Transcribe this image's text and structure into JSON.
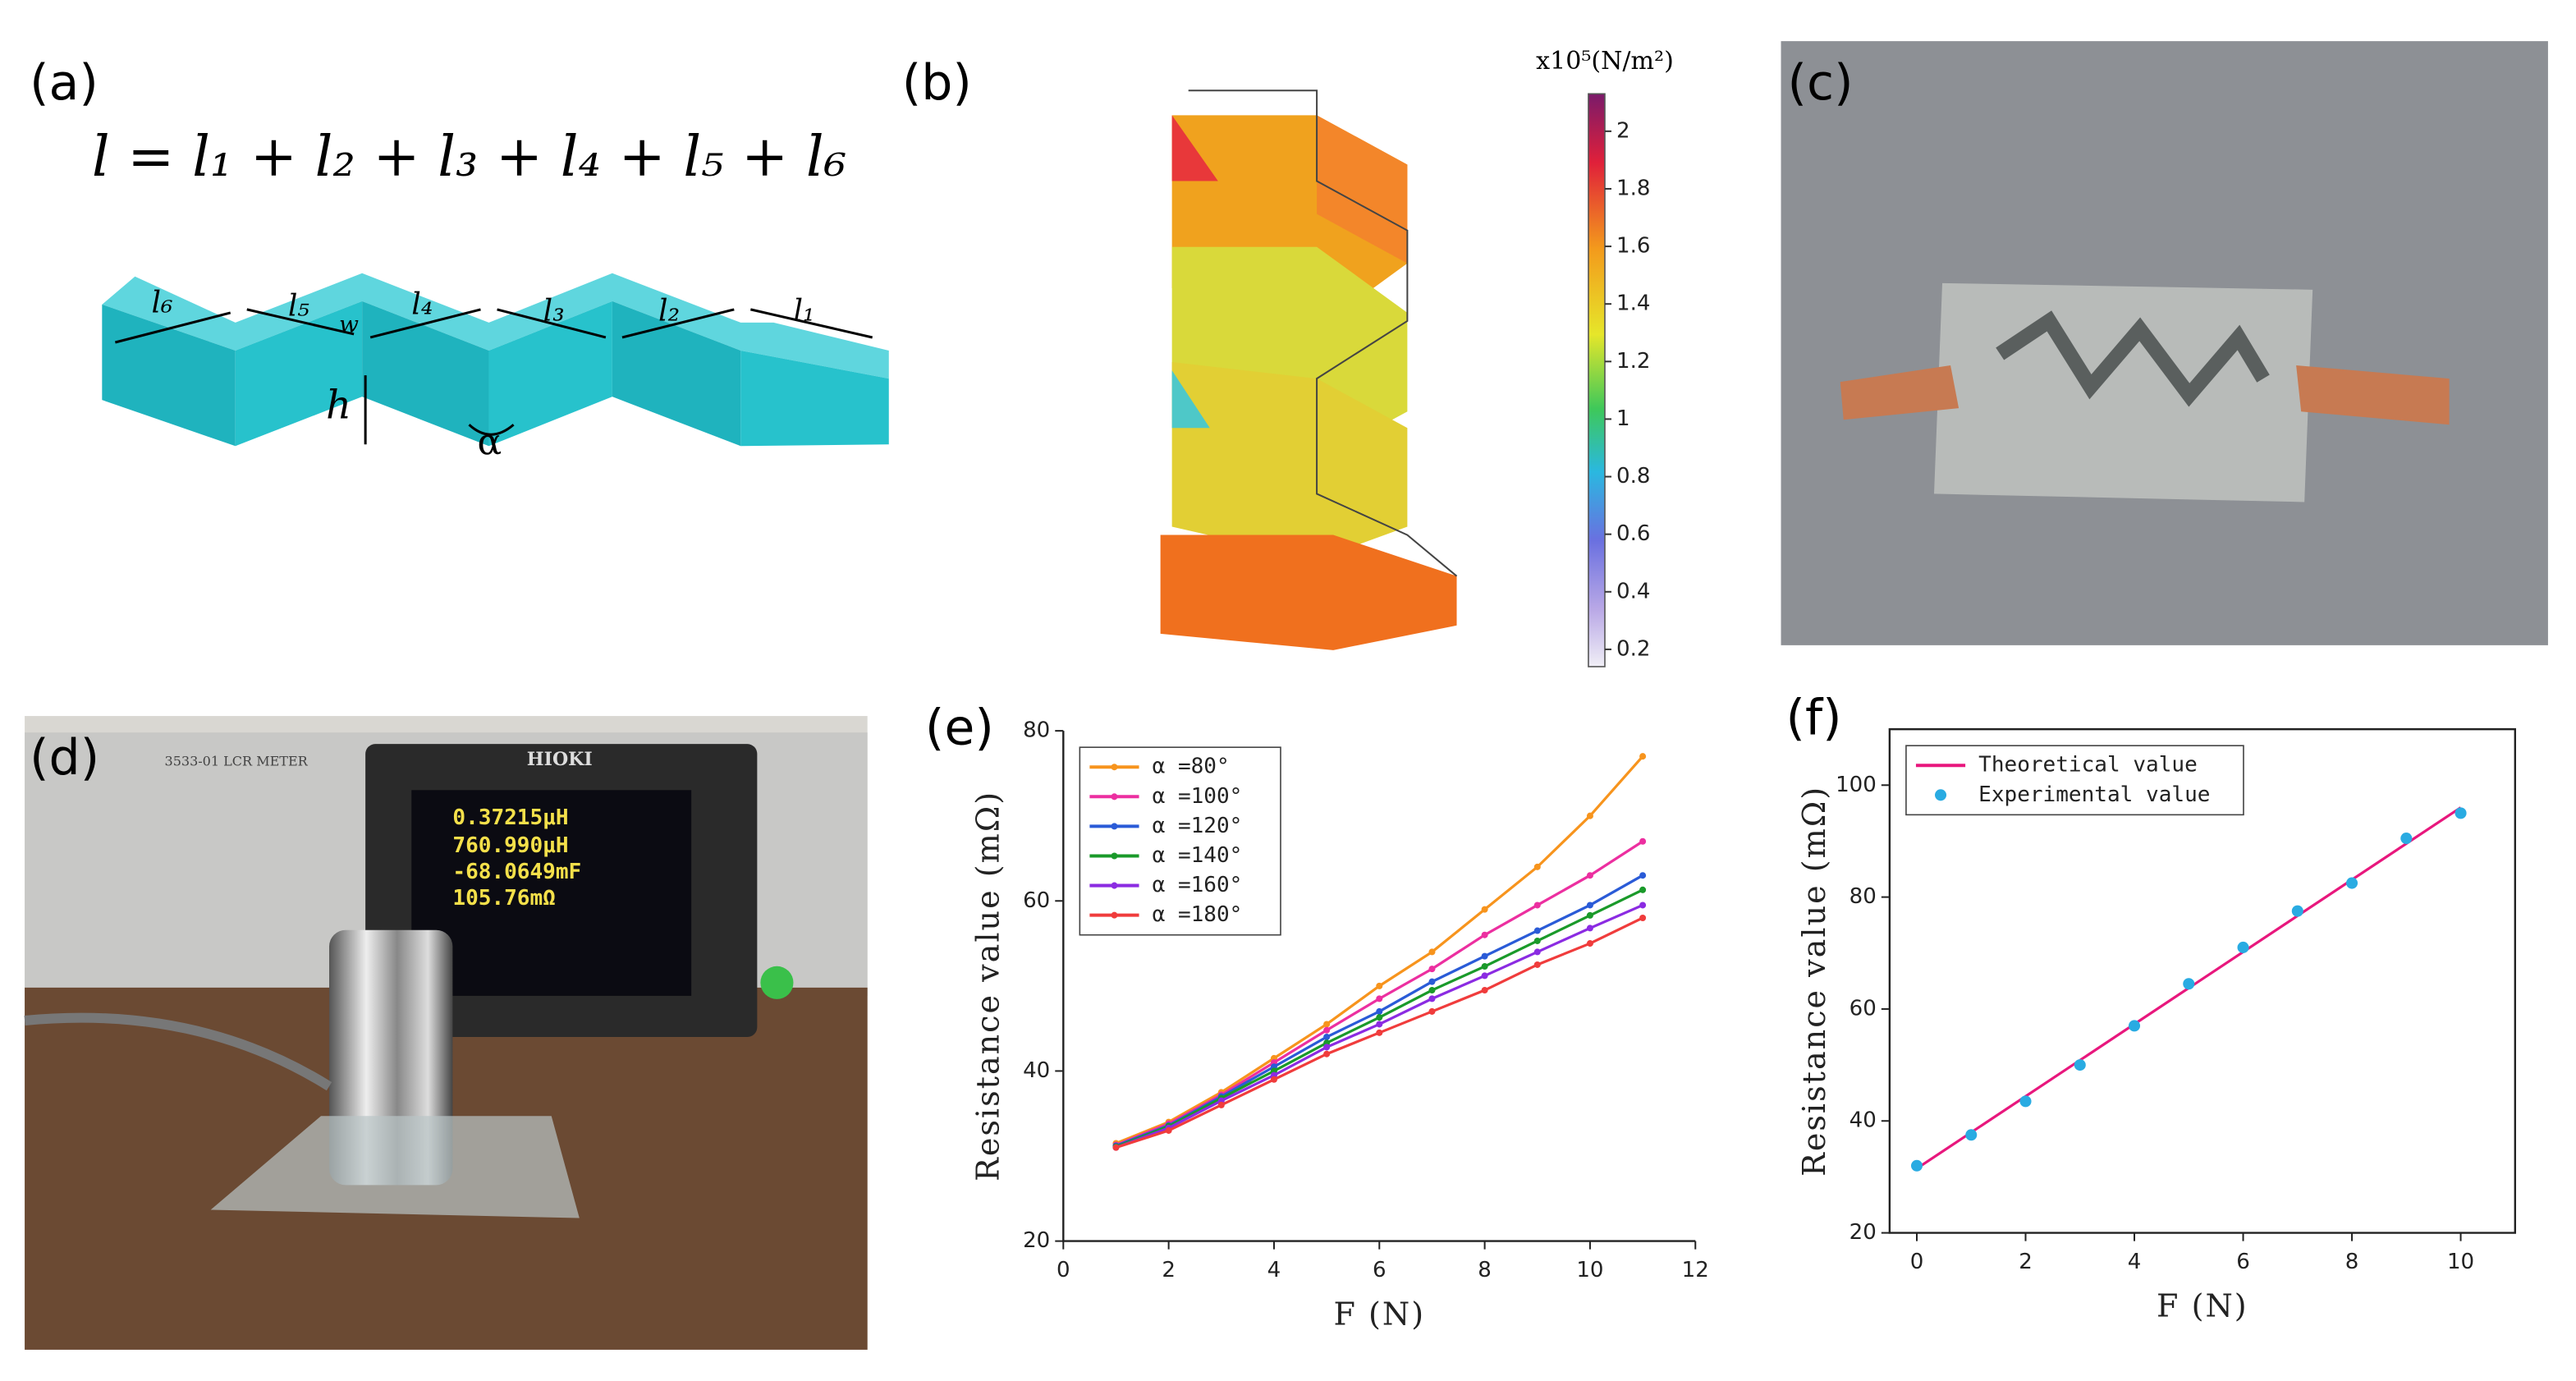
{
  "panels": {
    "a": "(a)",
    "b": "(b)",
    "c": "(c)",
    "d": "(d)",
    "e": "(e)",
    "f": "(f)"
  },
  "equation": "l = l₁ + l₂ + l₃ + l₄ + l₅ + l₆",
  "diagram_labels": [
    "l₆",
    "l₅",
    "w",
    "l₄",
    "l₃",
    "l₂",
    "l₁",
    "h",
    "α"
  ],
  "colorbar": {
    "title": "x10⁵(N/m²)",
    "lim": [
      0.14,
      2.13
    ],
    "ticks": [
      0.2,
      0.4,
      0.6,
      0.8,
      1,
      1.2,
      1.4,
      1.6,
      1.8,
      2
    ]
  },
  "instrument": {
    "brand": "HIOKI",
    "model": "3533-01 LCR METER",
    "readings": [
      "0.37215μH",
      "760.990μH",
      "-68.0649mF",
      "105.76mΩ"
    ]
  },
  "chart_data": [
    {
      "type": "line",
      "xlabel": "F (N)",
      "ylabel": "Resistance value (mΩ)",
      "x": [
        1,
        2,
        3,
        4,
        5,
        6,
        7,
        8,
        9,
        10,
        11
      ],
      "series": [
        {
          "name": "α =80°",
          "color": "#f7941d",
          "values": [
            31.5,
            34,
            37.5,
            41.5,
            45.5,
            50,
            54,
            59,
            64,
            70,
            77
          ]
        },
        {
          "name": "α =100°",
          "color": "#ec2fa0",
          "values": [
            31.3,
            33.8,
            37.2,
            41,
            44.8,
            48.5,
            52,
            56,
            59.5,
            63,
            67
          ]
        },
        {
          "name": "α =120°",
          "color": "#2a5bd7",
          "values": [
            31.2,
            33.6,
            37,
            40.5,
            44,
            47,
            50.5,
            53.5,
            56.5,
            59.5,
            63
          ]
        },
        {
          "name": "α =140°",
          "color": "#1a9a2a",
          "values": [
            31.1,
            33.5,
            36.8,
            40,
            43.3,
            46.3,
            49.5,
            52.3,
            55.3,
            58.3,
            61.3
          ]
        },
        {
          "name": "α =160°",
          "color": "#8b2be2",
          "values": [
            31,
            33.3,
            36.5,
            39.5,
            42.8,
            45.5,
            48.5,
            51.2,
            54,
            56.8,
            59.5
          ]
        },
        {
          "name": "α =180°",
          "color": "#f03c3c",
          "values": [
            31,
            33,
            36,
            39,
            42,
            44.5,
            47,
            49.5,
            52.5,
            55,
            58
          ]
        }
      ],
      "xlim": [
        0,
        12
      ],
      "xticks": [
        0,
        2,
        4,
        6,
        8,
        10,
        12
      ],
      "ylim": [
        20,
        80
      ],
      "yticks": [
        20,
        40,
        60,
        80
      ],
      "legend": "upper left",
      "markers": true
    },
    {
      "type": "line",
      "xlabel": "F (N)",
      "ylabel": "Resistance value (mΩ)",
      "series": [
        {
          "name": "Theoretical value",
          "color": "#e8177d",
          "style": "line",
          "x": [
            0,
            10
          ],
          "values": [
            31.5,
            96
          ]
        },
        {
          "name": "Experimental value",
          "color": "#29abe2",
          "style": "markers",
          "x": [
            0,
            1,
            2,
            3,
            4,
            5,
            6,
            7,
            8,
            9,
            10
          ],
          "values": [
            32,
            37.5,
            43.5,
            50,
            57,
            64.5,
            71,
            77.5,
            82.5,
            90.5,
            95
          ]
        }
      ],
      "xlim": [
        -0.5,
        11
      ],
      "xticks": [
        0,
        2,
        4,
        6,
        8,
        10
      ],
      "ylim": [
        20,
        110
      ],
      "yticks": [
        20,
        40,
        60,
        80,
        100
      ],
      "legend": "upper left"
    }
  ]
}
